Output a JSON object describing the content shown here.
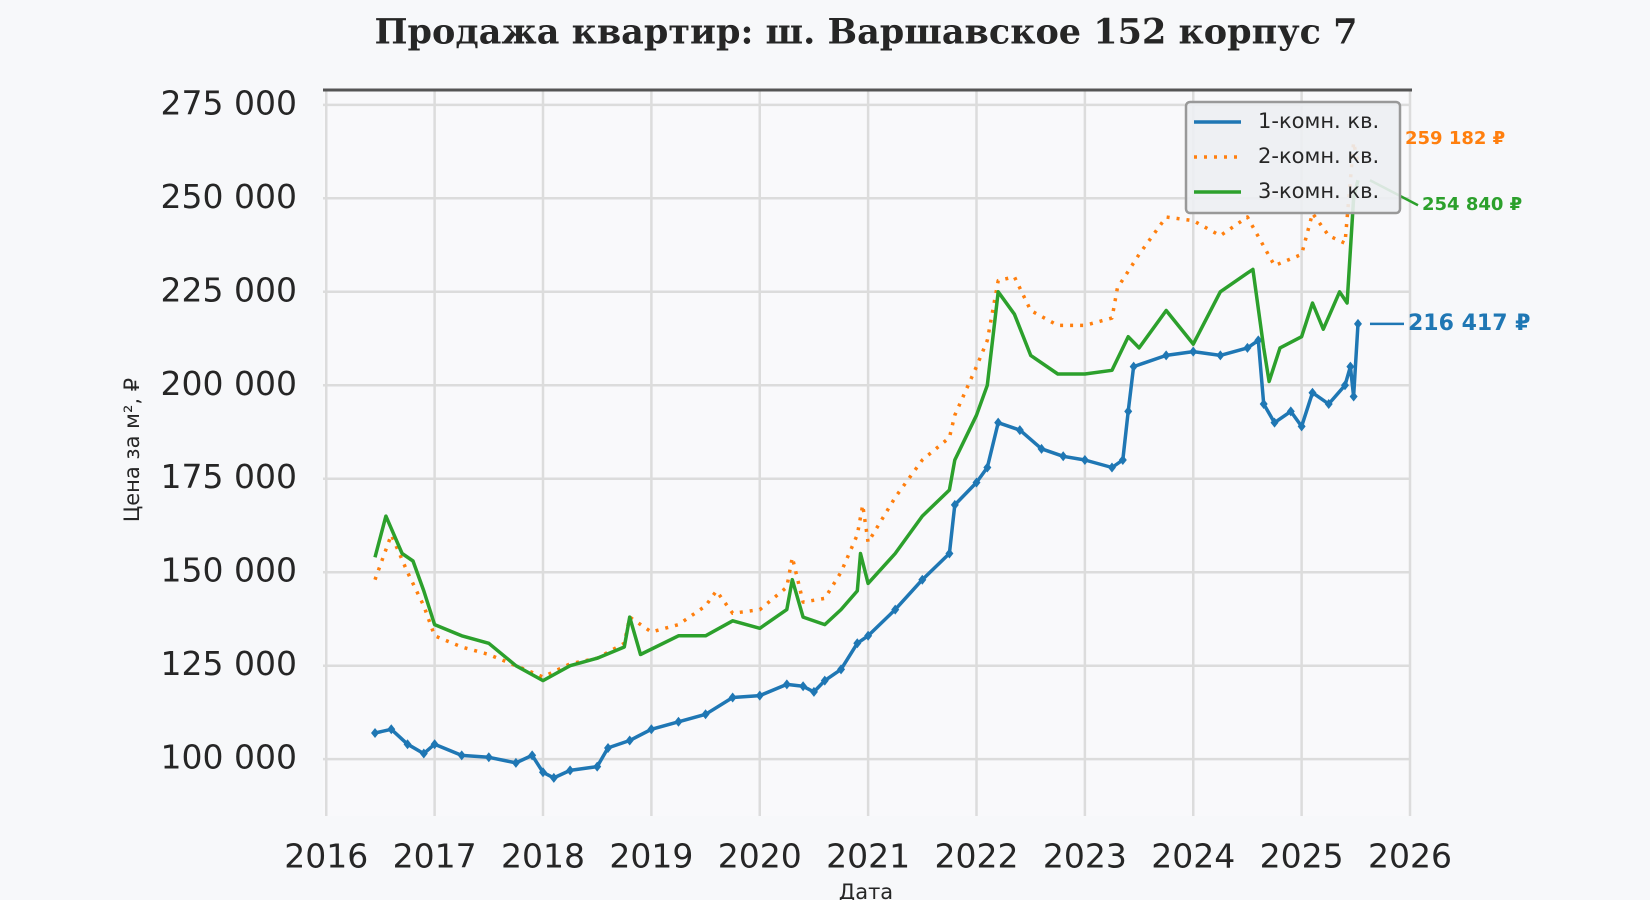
{
  "chart_data": {
    "type": "line",
    "title": "Продажа квартир: ш. Варшавское 152 корпус 7",
    "x_label": "Дата",
    "y_label": "Цена за м², ₽",
    "xlim": [
      2015.97,
      2026.0
    ],
    "xticks": [
      2016,
      2017,
      2018,
      2019,
      2020,
      2021,
      2022,
      2023,
      2024,
      2025,
      2026
    ],
    "ylim": [
      84800,
      278700
    ],
    "yticks": [
      {
        "value": 100000,
        "label": "100 000"
      },
      {
        "value": 125000,
        "label": "125 000"
      },
      {
        "value": 150000,
        "label": "150 000"
      },
      {
        "value": 175000,
        "label": "175 000"
      },
      {
        "value": 200000,
        "label": "200 000"
      },
      {
        "value": 225000,
        "label": "225 000"
      },
      {
        "value": 250000,
        "label": "250 000"
      },
      {
        "value": 275000,
        "label": "275 000"
      }
    ],
    "grid": true,
    "legend": "upper right",
    "series": [
      {
        "name": "1-комн. кв.",
        "color": "#1f77b4",
        "style": "solid-markers",
        "x": [
          2016.45,
          2016.6,
          2016.75,
          2016.9,
          2017.0,
          2017.25,
          2017.5,
          2017.75,
          2017.9,
          2018.0,
          2018.1,
          2018.25,
          2018.5,
          2018.6,
          2018.8,
          2019.0,
          2019.25,
          2019.5,
          2019.75,
          2020.0,
          2020.25,
          2020.4,
          2020.5,
          2020.6,
          2020.75,
          2020.9,
          2021.0,
          2021.25,
          2021.5,
          2021.75,
          2021.8,
          2022.0,
          2022.1,
          2022.2,
          2022.4,
          2022.6,
          2022.8,
          2023.0,
          2023.25,
          2023.35,
          2023.4,
          2023.45,
          2023.75,
          2024.0,
          2024.25,
          2024.5,
          2024.6,
          2024.65,
          2024.75,
          2024.9,
          2025.0,
          2025.1,
          2025.25,
          2025.4,
          2025.45,
          2025.48,
          2025.52
        ],
        "values": [
          107000,
          108000,
          104000,
          101500,
          104000,
          101000,
          100500,
          99000,
          101000,
          96500,
          95000,
          97000,
          98000,
          103000,
          105000,
          108000,
          110000,
          112000,
          116500,
          117000,
          120000,
          119500,
          118000,
          121000,
          124000,
          131000,
          133000,
          140000,
          148000,
          155000,
          168000,
          174000,
          178000,
          190000,
          188000,
          183000,
          181000,
          180000,
          178000,
          180000,
          193000,
          205000,
          208000,
          209000,
          208000,
          210000,
          212000,
          195000,
          190000,
          193000,
          189000,
          198000,
          195000,
          200000,
          205000,
          197000,
          216417
        ]
      },
      {
        "name": "2-комн. кв.",
        "color": "#ff7f0e",
        "style": "dotted",
        "x": [
          2016.45,
          2016.6,
          2016.75,
          2016.9,
          2017.0,
          2017.25,
          2017.5,
          2017.75,
          2018.0,
          2018.25,
          2018.5,
          2018.75,
          2018.8,
          2019.0,
          2019.25,
          2019.5,
          2019.6,
          2019.75,
          2020.0,
          2020.25,
          2020.3,
          2020.4,
          2020.6,
          2020.75,
          2020.9,
          2020.95,
          2021.0,
          2021.25,
          2021.5,
          2021.75,
          2021.8,
          2022.0,
          2022.1,
          2022.2,
          2022.35,
          2022.5,
          2022.75,
          2023.0,
          2023.25,
          2023.3,
          2023.5,
          2023.75,
          2024.0,
          2024.25,
          2024.5,
          2024.75,
          2025.0,
          2025.1,
          2025.25,
          2025.4,
          2025.48,
          2025.52
        ],
        "values": [
          148000,
          160000,
          150000,
          141000,
          133000,
          130000,
          128000,
          125000,
          122000,
          125500,
          127000,
          131000,
          138000,
          134000,
          136000,
          141000,
          145000,
          139000,
          140000,
          146000,
          154000,
          142000,
          143000,
          150000,
          160000,
          168000,
          158000,
          170000,
          180000,
          186000,
          192000,
          205000,
          212000,
          228000,
          229000,
          220000,
          216000,
          216000,
          218000,
          226000,
          235000,
          245000,
          244000,
          240000,
          245000,
          232000,
          235000,
          246000,
          240000,
          238000,
          265000,
          259182
        ]
      },
      {
        "name": "3-комн. кв.",
        "color": "#2ca02c",
        "style": "solid",
        "x": [
          2016.45,
          2016.55,
          2016.7,
          2016.8,
          2016.9,
          2017.0,
          2017.25,
          2017.5,
          2017.75,
          2018.0,
          2018.25,
          2018.5,
          2018.75,
          2018.8,
          2018.9,
          2019.25,
          2019.5,
          2019.75,
          2020.0,
          2020.25,
          2020.3,
          2020.4,
          2020.6,
          2020.75,
          2020.9,
          2020.93,
          2021.0,
          2021.25,
          2021.5,
          2021.75,
          2021.8,
          2022.0,
          2022.1,
          2022.2,
          2022.35,
          2022.5,
          2022.75,
          2023.0,
          2023.25,
          2023.4,
          2023.5,
          2023.75,
          2024.0,
          2024.25,
          2024.5,
          2024.55,
          2024.65,
          2024.7,
          2024.8,
          2025.0,
          2025.1,
          2025.2,
          2025.35,
          2025.42,
          2025.48,
          2025.52
        ],
        "values": [
          154000,
          165000,
          155000,
          153000,
          145000,
          136000,
          133000,
          131000,
          125000,
          121000,
          125000,
          127000,
          130000,
          138000,
          128000,
          133000,
          133000,
          137000,
          135000,
          140000,
          148000,
          138000,
          136000,
          140000,
          145000,
          155000,
          147000,
          155000,
          165000,
          172000,
          180000,
          192000,
          200000,
          225000,
          219000,
          208000,
          203000,
          203000,
          204000,
          213000,
          210000,
          220000,
          211000,
          225000,
          230000,
          231000,
          210000,
          201000,
          210000,
          213000,
          222000,
          215000,
          225000,
          222000,
          250000,
          254840
        ]
      }
    ],
    "annotations": [
      {
        "series": 1,
        "value": 259182,
        "label": "259 182 ₽"
      },
      {
        "series": 2,
        "value": 254840,
        "label": "254 840 ₽"
      },
      {
        "series": 0,
        "value": 216417,
        "label": "216 417 ₽"
      }
    ]
  }
}
